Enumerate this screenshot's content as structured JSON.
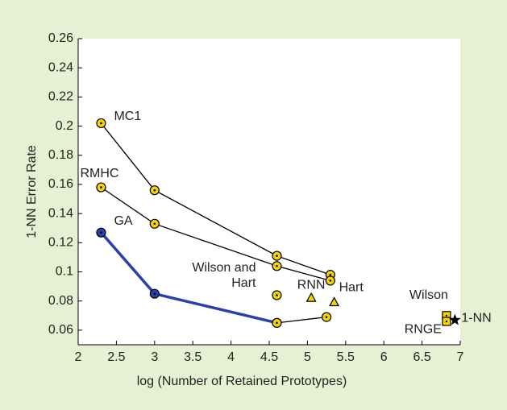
{
  "chart_data": {
    "type": "line",
    "xlabel": "log (Number of Retained Prototypes)",
    "ylabel": "1-NN Error Rate",
    "xlim": [
      2,
      7
    ],
    "xticks": [
      2,
      2.5,
      3,
      3.5,
      4,
      4.5,
      5,
      5.5,
      6,
      6.5,
      7
    ],
    "ylim": [
      0.05,
      0.26
    ],
    "yticks": [
      0.06,
      0.08,
      0.1,
      0.12,
      0.14,
      0.16,
      0.18,
      0.2,
      0.22,
      0.24,
      0.26
    ],
    "series": [
      {
        "name": "MC1",
        "color": "#000000",
        "fill": "#f5d400",
        "marker": "circle",
        "x": [
          2.3,
          3.0,
          4.6,
          5.3
        ],
        "values": [
          0.202,
          0.156,
          0.111,
          0.098
        ]
      },
      {
        "name": "RMHC",
        "color": "#000000",
        "fill": "#f5d400",
        "marker": "circle",
        "x": [
          2.3,
          3.0,
          4.6,
          5.3
        ],
        "values": [
          0.158,
          0.133,
          0.104,
          0.094
        ]
      },
      {
        "name": "GA",
        "color": "#2b3fb0",
        "fill": "#2b3fb0",
        "marker": "circle",
        "x": [
          2.3,
          3.0,
          4.6
        ],
        "values": [
          0.127,
          0.085,
          0.065
        ]
      },
      {
        "color": "#000000",
        "fill": "#f5d400",
        "marker": "circle",
        "x": [
          4.6,
          5.25
        ],
        "values": [
          0.065,
          0.069
        ]
      },
      {
        "name": "Wilson and Hart",
        "color": "#000000",
        "fill": "#f5d400",
        "marker": "circle",
        "x": [
          4.6
        ],
        "values": [
          0.084
        ]
      },
      {
        "name": "RNN",
        "color": "#000000",
        "fill": "#f5d400",
        "marker": "triangle",
        "x": [
          5.05
        ],
        "values": [
          0.082
        ]
      },
      {
        "name": "Hart",
        "color": "#000000",
        "fill": "#f5d400",
        "marker": "triangle",
        "x": [
          5.35
        ],
        "values": [
          0.079
        ]
      },
      {
        "name": "Wilson",
        "color": "#000000",
        "fill": "#f5d400",
        "marker": "square",
        "x": [
          6.82
        ],
        "values": [
          0.07
        ]
      },
      {
        "name": "RNGE",
        "color": "#000000",
        "fill": "#f5d400",
        "marker": "square",
        "x": [
          6.82
        ],
        "values": [
          0.066
        ]
      },
      {
        "name": "1-NN",
        "color": "#000000",
        "fill": "#000000",
        "marker": "star",
        "x": [
          6.93
        ],
        "values": [
          0.067
        ]
      }
    ]
  }
}
